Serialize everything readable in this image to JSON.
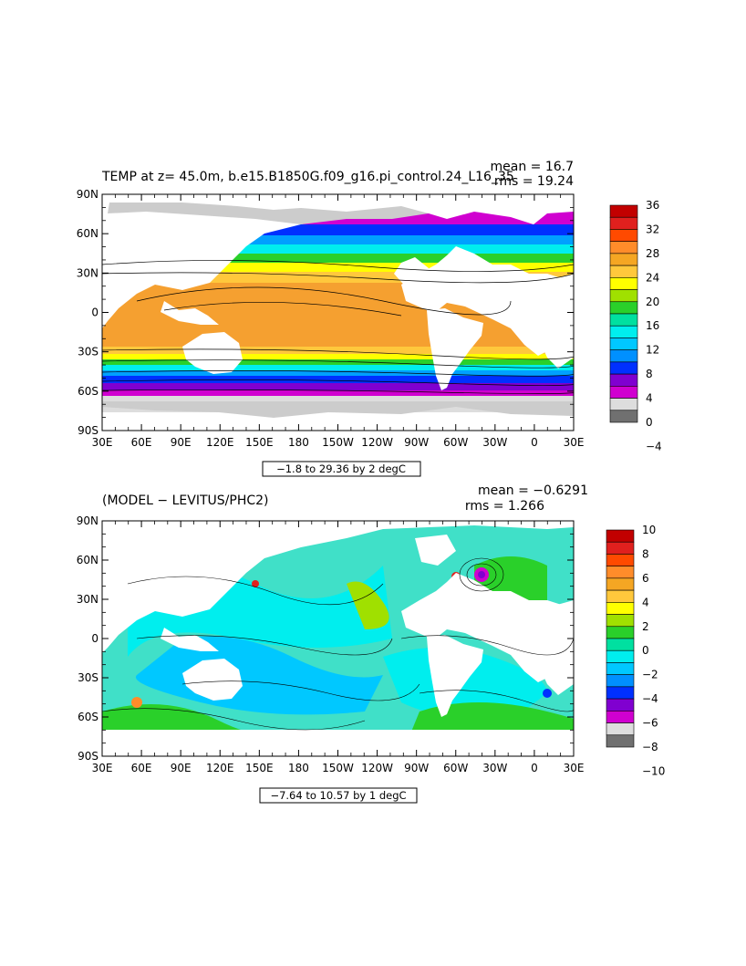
{
  "panels": [
    {
      "id": "top",
      "title": "TEMP at z=  45.0m, b.e15.B1850G.f09_g16.pi_control.24_L16_35",
      "stats": [
        "mean = 16.7",
        "rms = 19.24"
      ],
      "range_label": "−1.8 to 29.36 by 2 degC"
    },
    {
      "id": "bottom",
      "title": "(MODEL − LEVITUS/PHC2)",
      "stats": [
        "mean = −0.6291",
        "rms = 1.266"
      ],
      "range_label": "−7.64 to 10.57 by 1 degC"
    }
  ],
  "chart_data": [
    {
      "type": "heatmap",
      "title": "TEMP at z=  45.0m, b.e15.B1850G.f09_g16.pi_control.24_L16_35",
      "x_ticks": [
        "30E",
        "60E",
        "90E",
        "120E",
        "150E",
        "180",
        "150W",
        "120W",
        "90W",
        "60W",
        "30W",
        "0",
        "30E"
      ],
      "y_ticks": [
        "90N",
        "60N",
        "30N",
        "0",
        "30S",
        "60S",
        "90S"
      ],
      "y_values": [
        90,
        60,
        30,
        0,
        -30,
        -60,
        -90
      ],
      "colorbar": {
        "labels": [
          "36",
          "32",
          "28",
          "24",
          "20",
          "16",
          "12",
          "8",
          "4",
          "0",
          "−4"
        ],
        "colors": [
          "#c20000",
          "#e0201e",
          "#ff4a00",
          "#ff8c2a",
          "#f5a623",
          "#ffc83c",
          "#ffff00",
          "#a0e000",
          "#2ad02a",
          "#00e0a0",
          "#00eeee",
          "#00c8ff",
          "#0090ff",
          "#0030ff",
          "#8000d0",
          "#d000d0",
          "#dddddd",
          "#707070"
        ]
      },
      "mean": 16.7,
      "rms": 19.24,
      "contour_min": -1.8,
      "contour_max": 29.36,
      "contour_interval": 2,
      "units": "degC"
    },
    {
      "type": "heatmap",
      "title": "(MODEL − LEVITUS/PHC2)",
      "x_ticks": [
        "30E",
        "60E",
        "90E",
        "120E",
        "150E",
        "180",
        "150W",
        "120W",
        "90W",
        "60W",
        "30W",
        "0",
        "30E"
      ],
      "y_ticks": [
        "90N",
        "60N",
        "30N",
        "0",
        "30S",
        "60S",
        "90S"
      ],
      "y_values": [
        90,
        60,
        30,
        0,
        -30,
        -60,
        -90
      ],
      "colorbar": {
        "labels": [
          "10",
          "8",
          "6",
          "4",
          "2",
          "0",
          "−2",
          "−4",
          "−6",
          "−8",
          "−10"
        ],
        "colors": [
          "#c20000",
          "#e0201e",
          "#ff4a00",
          "#ff8c2a",
          "#f5a623",
          "#ffc83c",
          "#ffff00",
          "#a0e000",
          "#2ad02a",
          "#00e0a0",
          "#00eeee",
          "#00c8ff",
          "#0090ff",
          "#0030ff",
          "#8000d0",
          "#d000d0",
          "#dddddd",
          "#707070"
        ]
      },
      "mean": -0.6291,
      "rms": 1.266,
      "contour_min": -7.64,
      "contour_max": 10.57,
      "contour_interval": 1,
      "units": "degC"
    }
  ]
}
